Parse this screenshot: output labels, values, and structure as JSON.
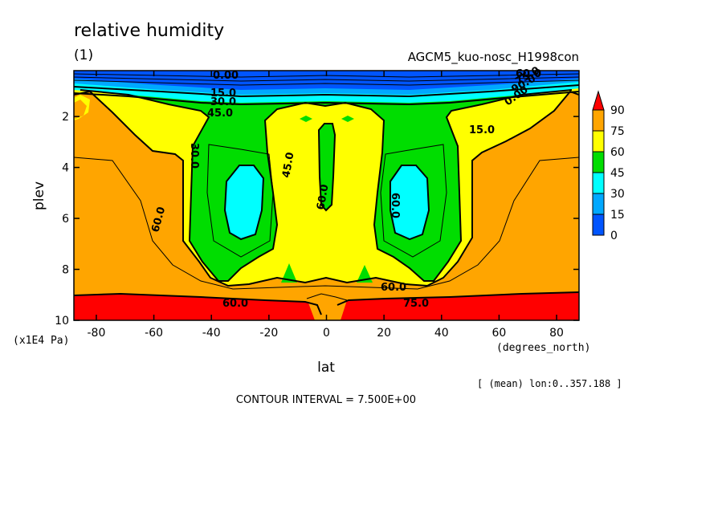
{
  "chart_data": {
    "type": "contour",
    "title": "relative humidity",
    "panel_id": "(1)",
    "model_label": "AGCM5_kuo-nosc_H1998con",
    "xlabel": "lat",
    "xunits": "(degrees_north)",
    "ylabel": "plev",
    "yunits": "(x1E4 Pa)",
    "xlim": [
      -87.8,
      87.8
    ],
    "ylim": [
      10,
      0.2
    ],
    "x_ticks": [
      "-80",
      "-60",
      "-40",
      "-20",
      "0",
      "20",
      "40",
      "60",
      "80"
    ],
    "x_tick_values": [
      -80,
      -60,
      -40,
      -20,
      0,
      20,
      40,
      60,
      80
    ],
    "y_ticks": [
      "2",
      "4",
      "6",
      "8",
      "10"
    ],
    "y_tick_values": [
      2,
      4,
      6,
      8,
      10
    ],
    "mean_note": "[ (mean) lon:0..357.188 ]",
    "contour_interval_text": "CONTOUR INTERVAL = 7.500E+00",
    "colorbar": {
      "levels": [
        "90",
        "75",
        "60",
        "45",
        "30",
        "15",
        "0"
      ],
      "colors": {
        "red": "#ff0000",
        "orange": "#ffa500",
        "yellow": "#ffff00",
        "green": "#00dd00",
        "cyan": "#00ffff",
        "sky": "#00a8ff",
        "blue": "#0055ff"
      }
    },
    "contour_labels": [
      "0.00",
      "15.0",
      "30.0",
      "45.0",
      "60.0",
      "75.0",
      "90.0",
      "0.00",
      "15.0",
      "30.0",
      "45.0",
      "60.0",
      "60.0",
      "60.0",
      "60.0",
      "60.0",
      "75.0",
      "75.0",
      "90.0"
    ]
  }
}
